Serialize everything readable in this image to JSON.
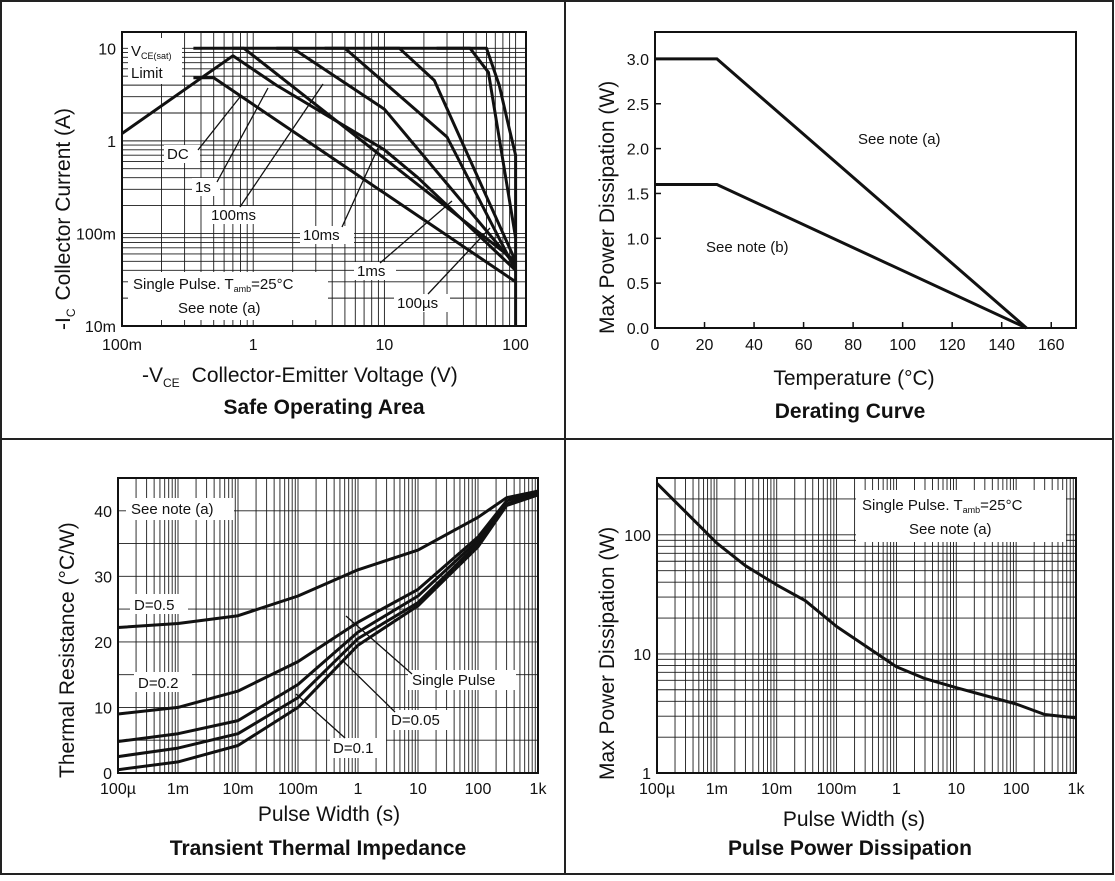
{
  "colors": {
    "line": "#111111",
    "grid": "#1a1a1a",
    "background": "#ffffff",
    "border": "#222222"
  },
  "chart_data": [
    {
      "id": "soa",
      "type": "line",
      "title": "Safe Operating Area",
      "xlabel_main": "-V",
      "xlabel_sub": "CE",
      "xlabel_rest": "Collector-Emitter Voltage (V)",
      "ylabel_main": "-I",
      "ylabel_sub": "C",
      "ylabel_rest": "Collector Current (A)",
      "xscale": "log",
      "yscale": "log",
      "xlim": [
        0.1,
        120
      ],
      "ylim": [
        0.01,
        15
      ],
      "xticks": [
        {
          "v": 0.1,
          "label": "100m"
        },
        {
          "v": 1,
          "label": "1"
        },
        {
          "v": 10,
          "label": "10"
        },
        {
          "v": 100,
          "label": "100"
        }
      ],
      "yticks": [
        {
          "v": 0.01,
          "label": "10m"
        },
        {
          "v": 0.1,
          "label": "100m"
        },
        {
          "v": 1,
          "label": "1"
        },
        {
          "v": 10,
          "label": "10"
        }
      ],
      "grid": true,
      "series": [
        {
          "points": [
            [
              0.1,
              1.2
            ],
            [
              0.7,
              8.3
            ],
            [
              1.5,
              4.0
            ],
            [
              10,
              0.8
            ],
            [
              18,
              0.4
            ],
            [
              100,
              0.04
            ]
          ]
        },
        {
          "points": [
            [
              0.35,
              4.8
            ],
            [
              0.5,
              4.8
            ],
            [
              100,
              0.03
            ]
          ]
        },
        {
          "points": [
            [
              0.7,
              10
            ],
            [
              0.85,
              10
            ],
            [
              100,
              0.05
            ]
          ]
        },
        {
          "points": [
            [
              1.5,
              10
            ],
            [
              2.0,
              10
            ],
            [
              10,
              2.2
            ],
            [
              100,
              0.045
            ]
          ]
        },
        {
          "points": [
            [
              3.5,
              10
            ],
            [
              5,
              10
            ],
            [
              30,
              1.1
            ],
            [
              100,
              0.04
            ]
          ]
        },
        {
          "points": [
            [
              8,
              10
            ],
            [
              13,
              10
            ],
            [
              24,
              4.5
            ],
            [
              100,
              0.05
            ]
          ]
        },
        {
          "points": [
            [
              25,
              10
            ],
            [
              45,
              10
            ],
            [
              62,
              5.5
            ],
            [
              100,
              0.09
            ]
          ]
        },
        {
          "points": [
            [
              0.35,
              10
            ],
            [
              60,
              10
            ],
            [
              75,
              4.0
            ],
            [
              88,
              1.5
            ],
            [
              100,
              0.7
            ],
            [
              100,
              0.01
            ]
          ]
        }
      ],
      "labels": {
        "vce_main": "V",
        "vce_sub": "CE(sat)",
        "limit": "Limit",
        "dc": "DC",
        "s1": "1s",
        "ms100": "100ms",
        "ms10": "10ms",
        "ms1": "1ms",
        "us100": "100µs",
        "pulse_main": "Single Pulse. T",
        "pulse_sub": "amb",
        "pulse_rest": "=25°C",
        "note": "See note (a)"
      }
    },
    {
      "id": "derating",
      "type": "line",
      "title": "Derating Curve",
      "xlabel": "Temperature (°C)",
      "ylabel": "Max Power Dissipation (W)",
      "xlim": [
        0,
        170
      ],
      "ylim": [
        0,
        3.3
      ],
      "xticks": [
        0,
        20,
        40,
        60,
        80,
        100,
        120,
        140,
        160
      ],
      "yticks": [
        "0.0",
        "0.5",
        "1.0",
        "1.5",
        "2.0",
        "2.5",
        "3.0"
      ],
      "grid": false,
      "series": [
        {
          "name": "See note (a)",
          "x": [
            0,
            25,
            150
          ],
          "y": [
            3.0,
            3.0,
            0
          ]
        },
        {
          "name": "See note (b)",
          "x": [
            0,
            25,
            150
          ],
          "y": [
            1.6,
            1.6,
            0
          ]
        }
      ]
    },
    {
      "id": "thermal",
      "type": "line",
      "title": "Transient Thermal Impedance",
      "xlabel": "Pulse Width (s)",
      "ylabel": "Thermal Resistance (°C/W)",
      "xscale": "log",
      "xlim": [
        0.0001,
        1000
      ],
      "ylim": [
        0,
        45
      ],
      "xticks": [
        {
          "v": 0.0001,
          "label": "100µ"
        },
        {
          "v": 0.001,
          "label": "1m"
        },
        {
          "v": 0.01,
          "label": "10m"
        },
        {
          "v": 0.1,
          "label": "100m"
        },
        {
          "v": 1,
          "label": "1"
        },
        {
          "v": 10,
          "label": "10"
        },
        {
          "v": 100,
          "label": "100"
        },
        {
          "v": 1000,
          "label": "1k"
        }
      ],
      "yticks": [
        0,
        10,
        20,
        30,
        40
      ],
      "grid": true,
      "series": [
        {
          "name": "D=0.5",
          "points": [
            [
              0.0001,
              22.2
            ],
            [
              0.001,
              22.8
            ],
            [
              0.01,
              24.0
            ],
            [
              0.1,
              27.0
            ],
            [
              1,
              31.0
            ],
            [
              10,
              34.0
            ],
            [
              100,
              39.0
            ],
            [
              300,
              42.0
            ],
            [
              1000,
              43.0
            ]
          ]
        },
        {
          "name": "D=0.2",
          "points": [
            [
              0.0001,
              9.0
            ],
            [
              0.001,
              10.0
            ],
            [
              0.01,
              12.5
            ],
            [
              0.1,
              17.0
            ],
            [
              1,
              23.0
            ],
            [
              10,
              28.0
            ],
            [
              100,
              36.0
            ],
            [
              300,
              41.5
            ],
            [
              1000,
              43.0
            ]
          ]
        },
        {
          "name": "D=0.1",
          "points": [
            [
              0.0001,
              4.8
            ],
            [
              0.001,
              6.0
            ],
            [
              0.01,
              8.0
            ],
            [
              0.1,
              13.5
            ],
            [
              1,
              21.5
            ],
            [
              10,
              27.0
            ],
            [
              100,
              35.5
            ],
            [
              300,
              41.0
            ],
            [
              1000,
              42.8
            ]
          ]
        },
        {
          "name": "D=0.05",
          "points": [
            [
              0.0001,
              2.5
            ],
            [
              0.001,
              3.8
            ],
            [
              0.01,
              6.0
            ],
            [
              0.1,
              11.5
            ],
            [
              1,
              20.5
            ],
            [
              10,
              26.0
            ],
            [
              100,
              35.0
            ],
            [
              300,
              41.0
            ],
            [
              1000,
              42.6
            ]
          ]
        },
        {
          "name": "Single Pulse",
          "points": [
            [
              0.0001,
              0.5
            ],
            [
              0.001,
              1.7
            ],
            [
              0.01,
              4.2
            ],
            [
              0.1,
              10.0
            ],
            [
              1,
              19.5
            ],
            [
              10,
              25.5
            ],
            [
              100,
              34.5
            ],
            [
              300,
              40.8
            ],
            [
              1000,
              42.4
            ]
          ]
        }
      ],
      "note": "See note (a)"
    },
    {
      "id": "pulse",
      "type": "line",
      "title": "Pulse Power Dissipation",
      "xlabel": "Pulse Width (s)",
      "ylabel": "Max Power Dissipation (W)",
      "xscale": "log",
      "yscale": "log",
      "xlim": [
        0.0001,
        1000
      ],
      "ylim": [
        1,
        300
      ],
      "xticks": [
        {
          "v": 0.0001,
          "label": "100µ"
        },
        {
          "v": 0.001,
          "label": "1m"
        },
        {
          "v": 0.01,
          "label": "10m"
        },
        {
          "v": 0.1,
          "label": "100m"
        },
        {
          "v": 1,
          "label": "1"
        },
        {
          "v": 10,
          "label": "10"
        },
        {
          "v": 100,
          "label": "100"
        },
        {
          "v": 1000,
          "label": "1k"
        }
      ],
      "yticks": [
        {
          "v": 1,
          "label": "1"
        },
        {
          "v": 10,
          "label": "10"
        },
        {
          "v": 100,
          "label": "100"
        }
      ],
      "grid": true,
      "series": [
        {
          "points": [
            [
              0.0001,
              270
            ],
            [
              0.001,
              85
            ],
            [
              0.003,
              55
            ],
            [
              0.01,
              38
            ],
            [
              0.03,
              28
            ],
            [
              0.1,
              17
            ],
            [
              1,
              7.8
            ],
            [
              3,
              6.2
            ],
            [
              10,
              5.2
            ],
            [
              100,
              3.8
            ],
            [
              300,
              3.1
            ],
            [
              1000,
              2.9
            ]
          ]
        }
      ],
      "labels": {
        "pulse_main": "Single Pulse. T",
        "pulse_sub": "amb",
        "pulse_rest": "=25°C",
        "note": "See note (a)"
      }
    }
  ]
}
